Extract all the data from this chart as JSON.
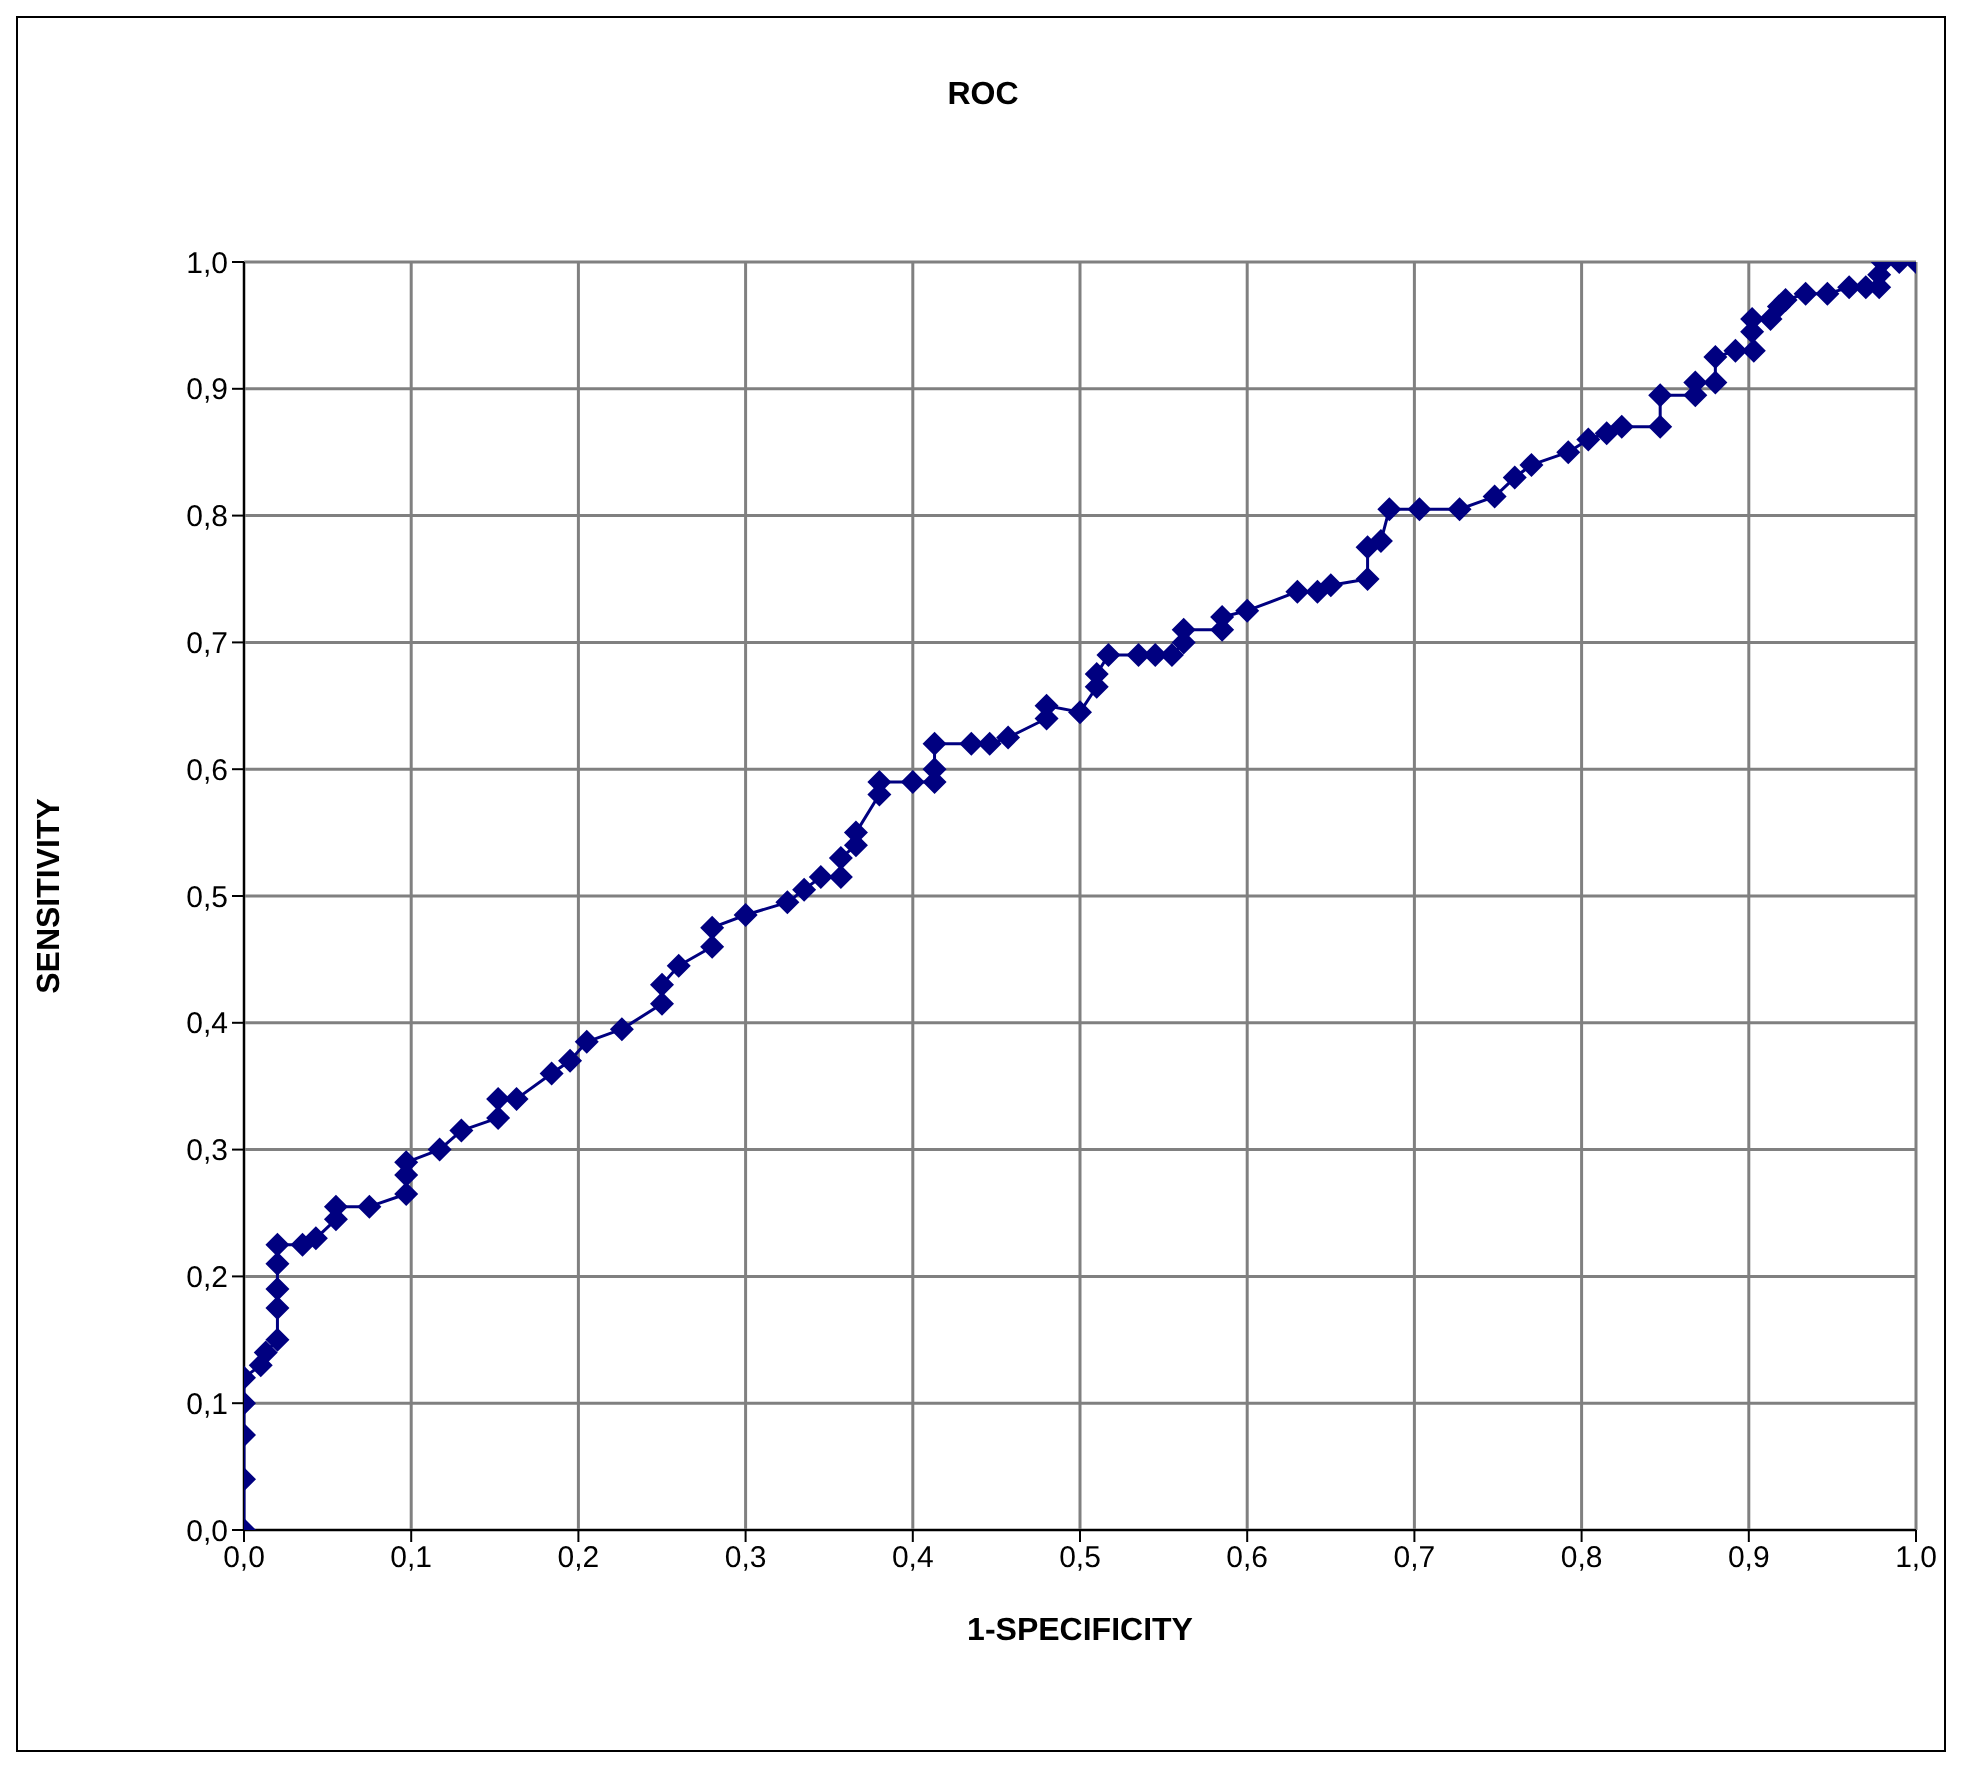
{
  "chart_data": {
    "type": "line",
    "title": "ROC",
    "xlabel": "1-SPECIFICITY",
    "ylabel": "SENSITIVITY",
    "x": [
      0,
      0,
      0,
      0,
      0,
      0.01,
      0.013,
      0.02,
      0.02,
      0.02,
      0.02,
      0.02,
      0.035,
      0.043,
      0.055,
      0.055,
      0.075,
      0.097,
      0.097,
      0.097,
      0.117,
      0.13,
      0.152,
      0.152,
      0.163,
      0.184,
      0.195,
      0.205,
      0.226,
      0.25,
      0.25,
      0.26,
      0.28,
      0.28,
      0.3,
      0.325,
      0.335,
      0.345,
      0.357,
      0.357,
      0.366,
      0.366,
      0.38,
      0.38,
      0.4,
      0.413,
      0.413,
      0.413,
      0.435,
      0.446,
      0.457,
      0.48,
      0.48,
      0.5,
      0.51,
      0.51,
      0.517,
      0.535,
      0.545,
      0.555,
      0.562,
      0.562,
      0.585,
      0.585,
      0.6,
      0.63,
      0.642,
      0.65,
      0.672,
      0.672,
      0.68,
      0.685,
      0.703,
      0.727,
      0.748,
      0.76,
      0.77,
      0.792,
      0.804,
      0.815,
      0.824,
      0.847,
      0.847,
      0.868,
      0.868,
      0.88,
      0.88,
      0.892,
      0.903,
      0.902,
      0.902,
      0.913,
      0.918,
      0.922,
      0.934,
      0.947,
      0.96,
      0.97,
      0.978,
      0.978,
      0.98,
      0.99,
      1
    ],
    "series": [
      {
        "color": "#000080",
        "values": [
          0,
          0.04,
          0.075,
          0.1,
          0.12,
          0.13,
          0.14,
          0.15,
          0.175,
          0.19,
          0.21,
          0.225,
          0.225,
          0.23,
          0.245,
          0.255,
          0.255,
          0.265,
          0.28,
          0.29,
          0.3,
          0.315,
          0.325,
          0.34,
          0.34,
          0.36,
          0.37,
          0.385,
          0.395,
          0.415,
          0.43,
          0.445,
          0.46,
          0.475,
          0.485,
          0.495,
          0.505,
          0.515,
          0.515,
          0.53,
          0.54,
          0.55,
          0.58,
          0.59,
          0.59,
          0.59,
          0.6,
          0.62,
          0.62,
          0.62,
          0.625,
          0.64,
          0.65,
          0.645,
          0.665,
          0.675,
          0.69,
          0.69,
          0.69,
          0.69,
          0.7,
          0.71,
          0.71,
          0.72,
          0.725,
          0.74,
          0.74,
          0.745,
          0.75,
          0.775,
          0.78,
          0.805,
          0.805,
          0.805,
          0.815,
          0.83,
          0.84,
          0.85,
          0.86,
          0.865,
          0.87,
          0.87,
          0.895,
          0.895,
          0.905,
          0.905,
          0.925,
          0.93,
          0.93,
          0.945,
          0.955,
          0.955,
          0.965,
          0.97,
          0.975,
          0.975,
          0.98,
          0.98,
          0.98,
          0.99,
          1,
          1,
          1
        ]
      }
    ],
    "xlim": [
      0,
      1
    ],
    "ylim": [
      0,
      1
    ],
    "xticks": [
      {
        "value": 0,
        "label": "0,0"
      },
      {
        "value": 0.1,
        "label": "0,1"
      },
      {
        "value": 0.2,
        "label": "0,2"
      },
      {
        "value": 0.3,
        "label": "0,3"
      },
      {
        "value": 0.4,
        "label": "0,4"
      },
      {
        "value": 0.5,
        "label": "0,5"
      },
      {
        "value": 0.6,
        "label": "0,6"
      },
      {
        "value": 0.7,
        "label": "0,7"
      },
      {
        "value": 0.8,
        "label": "0,8"
      },
      {
        "value": 0.9,
        "label": "0,9"
      },
      {
        "value": 1,
        "label": "1,0"
      }
    ],
    "yticks": [
      {
        "value": 0,
        "label": "0,0"
      },
      {
        "value": 0.1,
        "label": "0,1"
      },
      {
        "value": 0.2,
        "label": "0,2"
      },
      {
        "value": 0.3,
        "label": "0,3"
      },
      {
        "value": 0.4,
        "label": "0,4"
      },
      {
        "value": 0.5,
        "label": "0,5"
      },
      {
        "value": 0.6,
        "label": "0,6"
      },
      {
        "value": 0.7,
        "label": "0,7"
      },
      {
        "value": 0.8,
        "label": "0,8"
      },
      {
        "value": 0.9,
        "label": "0,9"
      },
      {
        "value": 1,
        "label": "1,0"
      }
    ],
    "grid": true,
    "marker": "diamond",
    "line_style": "solid"
  }
}
